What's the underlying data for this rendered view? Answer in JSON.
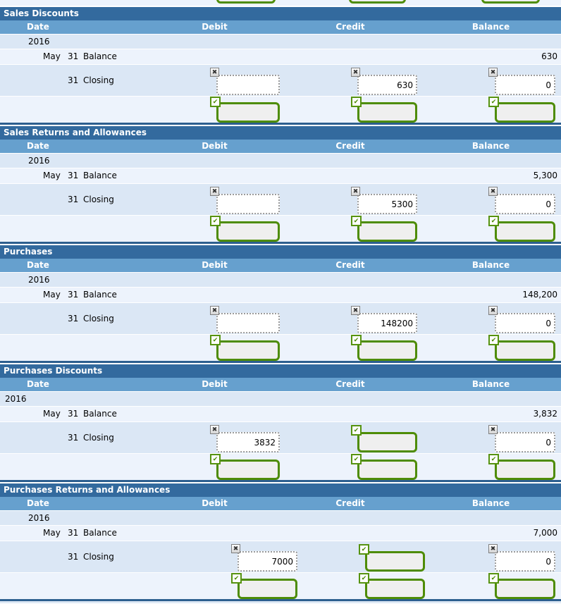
{
  "columns": {
    "date": "Date",
    "debit": "Debit",
    "credit": "Credit",
    "balance": "Balance"
  },
  "colors": {
    "section_header_bg": "#336a9e",
    "column_header_bg": "#66a0ce",
    "row_shade_dark": "#dbe7f5",
    "row_shade_light": "#edf3fc",
    "section_bottom_border": "#2d5f8f",
    "graded_green": "#4e8c05",
    "dotted_input_gray": "#9b9b9b"
  },
  "icons": {
    "incorrect_marker": "x-icon",
    "correct_marker": "check-icon"
  },
  "sections": [
    {
      "title": "Sales Discounts",
      "year": "2016",
      "opening": {
        "month": "May",
        "day": "31",
        "desc": "Balance",
        "balance": "630"
      },
      "closing": {
        "day": "31",
        "desc": "Closing",
        "debit": {
          "marker": "x",
          "style": "dotted",
          "value": ""
        },
        "credit": {
          "marker": "x",
          "style": "dotted",
          "value": "630"
        },
        "balance": {
          "marker": "x",
          "style": "dotted",
          "value": "0"
        }
      },
      "answer": {
        "debit": "",
        "credit": "",
        "balance": ""
      }
    },
    {
      "title": "Sales Returns and Allowances",
      "year": "2016",
      "opening": {
        "month": "May",
        "day": "31",
        "desc": "Balance",
        "balance": "5,300"
      },
      "closing": {
        "day": "31",
        "desc": "Closing",
        "debit": {
          "marker": "x",
          "style": "dotted",
          "value": ""
        },
        "credit": {
          "marker": "x",
          "style": "dotted",
          "value": "5300"
        },
        "balance": {
          "marker": "x",
          "style": "dotted",
          "value": "0"
        }
      },
      "answer": {
        "debit": "",
        "credit": "",
        "balance": ""
      }
    },
    {
      "title": "Purchases",
      "year": "2016",
      "opening": {
        "month": "May",
        "day": "31",
        "desc": "Balance",
        "balance": "148,200"
      },
      "closing": {
        "day": "31",
        "desc": "Closing",
        "debit": {
          "marker": "x",
          "style": "dotted",
          "value": ""
        },
        "credit": {
          "marker": "x",
          "style": "dotted",
          "value": "148200"
        },
        "balance": {
          "marker": "x",
          "style": "dotted",
          "value": "0"
        }
      },
      "answer": {
        "debit": "",
        "credit": "",
        "balance": ""
      }
    },
    {
      "title": "Purchases Discounts",
      "year": "2016",
      "opening": {
        "month": "May",
        "day": "31",
        "desc": "Balance",
        "balance": "3,832"
      },
      "closing": {
        "day": "31",
        "desc": "Closing",
        "debit": {
          "marker": "x",
          "style": "dotted",
          "value": "3832"
        },
        "credit": {
          "marker": "check",
          "style": "green",
          "value": ""
        },
        "balance": {
          "marker": "x",
          "style": "dotted",
          "value": "0"
        }
      },
      "answer": {
        "debit": "",
        "credit": "",
        "balance": ""
      }
    },
    {
      "title": "Purchases Returns and Allowances",
      "year": "2016",
      "opening": {
        "month": "May",
        "day": "31",
        "desc": "Balance",
        "balance": "7,000"
      },
      "closing": {
        "day": "31",
        "desc": "Closing",
        "debit": {
          "marker": "x",
          "style": "dotted",
          "value": "7000"
        },
        "credit": {
          "marker": "check",
          "style": "green",
          "value": ""
        },
        "balance": {
          "marker": "x",
          "style": "dotted",
          "value": "0"
        }
      },
      "answer": {
        "debit": "",
        "credit": "",
        "balance": ""
      }
    }
  ]
}
